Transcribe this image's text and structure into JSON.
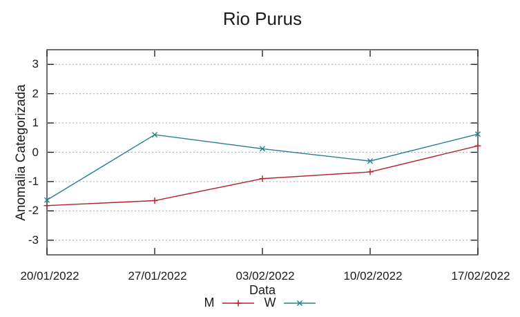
{
  "chart_data": {
    "type": "line",
    "title": "Rio Purus",
    "xlabel": "Data",
    "ylabel": "Anomalia Categorizada",
    "categories": [
      "20/01/2022",
      "27/01/2022",
      "03/02/2022",
      "10/02/2022",
      "17/02/2022"
    ],
    "series": [
      {
        "name": "M",
        "color": "#b42126",
        "marker": "plus",
        "values": [
          -1.82,
          -1.65,
          -0.9,
          -0.67,
          0.22
        ]
      },
      {
        "name": "W",
        "color": "#23808a",
        "marker": "cross",
        "values": [
          -1.63,
          0.6,
          0.12,
          -0.3,
          0.62
        ]
      }
    ],
    "yticks": [
      3,
      2,
      1,
      0,
      -1,
      -2,
      -3
    ],
    "ylim": [
      -3.5,
      3.5
    ],
    "grid": "horizontal-dotted",
    "legend_position": "bottom-center",
    "colors": {
      "grid": "#b3b3b3",
      "border": "#404040",
      "tick": "#111111",
      "text": "#1a1a1a",
      "background": "#ffffff"
    }
  }
}
